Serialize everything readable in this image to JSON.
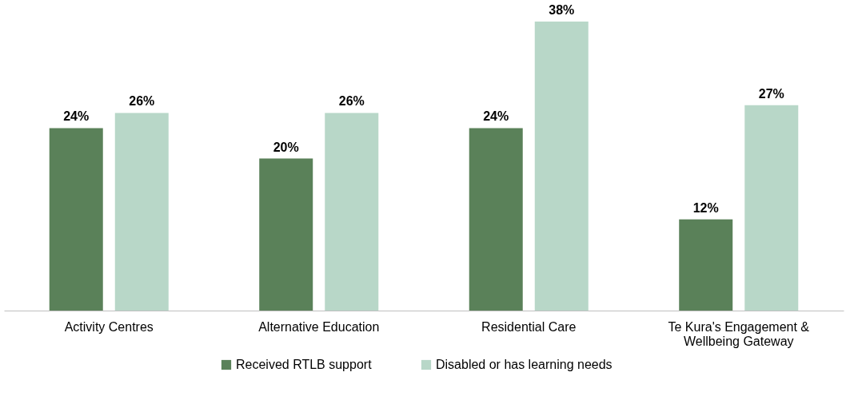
{
  "chart_data": {
    "type": "bar",
    "categories": [
      "Activity Centres",
      "Alternative Education",
      "Residential Care",
      "Te Kura's Engagement & Wellbeing Gateway"
    ],
    "series": [
      {
        "name": "Received RTLB support",
        "color": "#5a8159",
        "values": [
          24,
          20,
          24,
          12
        ],
        "value_labels": [
          "24%",
          "20%",
          "24%",
          "12%"
        ]
      },
      {
        "name": "Disabled or has learning needs",
        "color": "#b8d7c8",
        "values": [
          26,
          26,
          38,
          27
        ],
        "value_labels": [
          "26%",
          "26%",
          "38%",
          "27%"
        ]
      }
    ],
    "legend": "bottom",
    "grid": false
  }
}
